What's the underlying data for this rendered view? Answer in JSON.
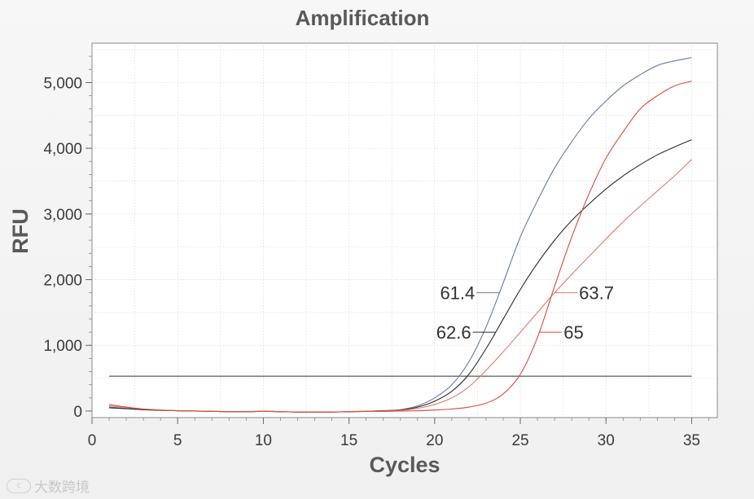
{
  "chart_data": {
    "type": "line",
    "title": "Amplification",
    "xlabel": "Cycles",
    "ylabel": "RFU",
    "xlim": [
      0,
      36.5
    ],
    "ylim": [
      -100,
      5600
    ],
    "xticks": [
      0,
      5,
      10,
      15,
      20,
      25,
      30,
      35
    ],
    "xtick_labels": [
      "0",
      "5",
      "10",
      "15",
      "20",
      "25",
      "30",
      "35"
    ],
    "yticks": [
      0,
      1000,
      2000,
      3000,
      4000,
      5000
    ],
    "ytick_labels": [
      "0",
      "1,000",
      "2,000",
      "3,000",
      "4,000",
      "5,000"
    ],
    "grid": true,
    "threshold": 530,
    "x": [
      1,
      2,
      3,
      4,
      5,
      6,
      7,
      8,
      9,
      10,
      11,
      12,
      13,
      14,
      15,
      16,
      17,
      18,
      19,
      20,
      21,
      22,
      23,
      24,
      25,
      26,
      27,
      28,
      29,
      30,
      31,
      32,
      33,
      34,
      35
    ],
    "series": [
      {
        "name": "61.4",
        "color": "#6b78a8",
        "values": [
          60,
          40,
          20,
          10,
          5,
          0,
          -5,
          -10,
          -10,
          -5,
          -10,
          -15,
          -15,
          -15,
          -10,
          -5,
          5,
          20,
          80,
          200,
          400,
          750,
          1280,
          1950,
          2650,
          3200,
          3700,
          4100,
          4450,
          4720,
          4950,
          5120,
          5260,
          5330,
          5380
        ]
      },
      {
        "name": "62.6",
        "color": "#2b2b2b",
        "values": [
          50,
          35,
          20,
          10,
          5,
          0,
          -5,
          -10,
          -10,
          -5,
          -10,
          -15,
          -15,
          -15,
          -10,
          -5,
          5,
          15,
          60,
          150,
          300,
          560,
          950,
          1400,
          1850,
          2250,
          2600,
          2900,
          3150,
          3380,
          3580,
          3750,
          3900,
          4020,
          4130
        ]
      },
      {
        "name": "63.7",
        "color": "#e07a72",
        "values": [
          80,
          55,
          30,
          15,
          5,
          0,
          -5,
          -10,
          -10,
          -5,
          -10,
          -15,
          -15,
          -15,
          -10,
          -5,
          0,
          10,
          40,
          100,
          200,
          370,
          620,
          900,
          1200,
          1500,
          1800,
          2080,
          2350,
          2620,
          2880,
          3120,
          3350,
          3580,
          3830
        ]
      },
      {
        "name": "65",
        "color": "#dc4a3f",
        "values": [
          100,
          60,
          30,
          15,
          5,
          0,
          -5,
          -10,
          -10,
          -5,
          -10,
          -15,
          -15,
          -15,
          -10,
          -5,
          -5,
          0,
          5,
          15,
          30,
          60,
          120,
          260,
          560,
          1120,
          1900,
          2650,
          3300,
          3850,
          4250,
          4600,
          4800,
          4950,
          5020
        ]
      }
    ],
    "annotations": [
      {
        "text": "61.4",
        "series": "61.4",
        "y_at": 1800,
        "side": "left"
      },
      {
        "text": "62.6",
        "series": "62.6",
        "y_at": 1200,
        "side": "left"
      },
      {
        "text": "63.7",
        "series": "63.7",
        "y_at": 1800,
        "side": "right"
      },
      {
        "text": "65",
        "series": "65",
        "y_at": 1200,
        "side": "right"
      }
    ]
  },
  "watermark": {
    "logo_text": "c",
    "text": "大数跨境"
  }
}
